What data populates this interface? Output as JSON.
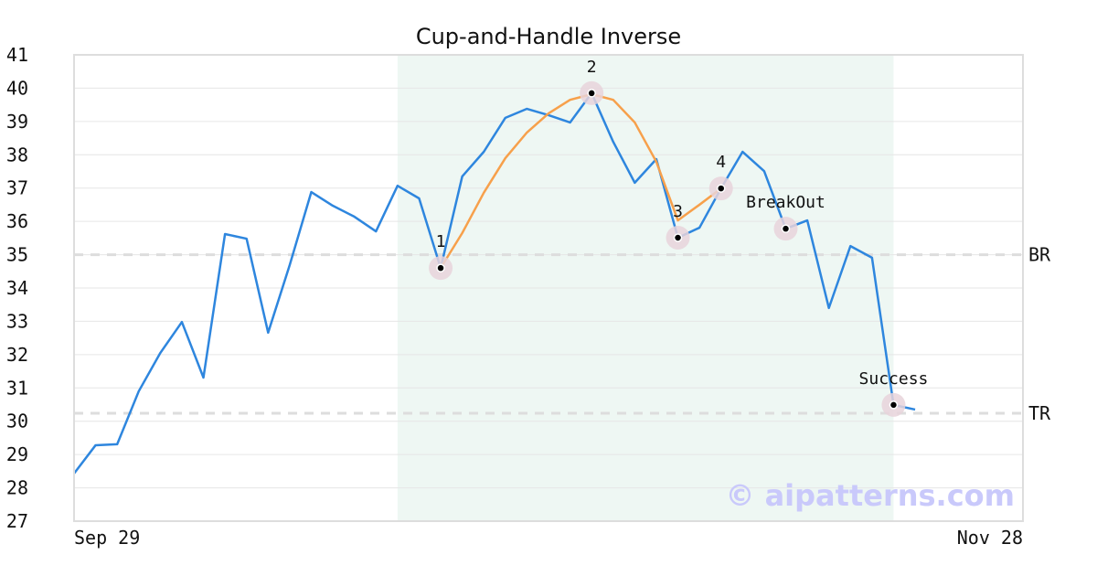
{
  "chart_data": {
    "type": "line",
    "title": "Cup-and-Handle Inverse",
    "categories": [
      "Sep 29",
      null,
      null,
      null,
      null,
      null,
      null,
      null,
      null,
      null,
      null,
      null,
      null,
      null,
      null,
      null,
      null,
      null,
      null,
      null,
      null,
      null,
      null,
      null,
      null,
      null,
      null,
      null,
      null,
      null,
      null,
      null,
      null,
      null,
      null,
      null,
      null,
      null,
      null,
      null,
      null,
      null,
      null,
      null,
      "Nov 28"
    ],
    "series": [
      {
        "color": "#2e86de",
        "values": [
          28.43,
          29.28,
          29.31,
          30.9,
          32.05,
          32.98,
          31.31,
          35.62,
          35.48,
          32.66,
          34.69,
          36.88,
          36.47,
          36.14,
          35.7,
          37.07,
          36.69,
          34.6,
          37.35,
          38.09,
          39.11,
          39.38,
          39.19,
          38.97,
          39.85,
          38.39,
          37.16,
          37.87,
          35.51,
          35.81,
          36.99,
          38.09,
          37.51,
          35.78,
          36.03,
          33.4,
          35.26,
          34.91,
          30.49,
          30.35,
          null,
          null,
          null,
          null,
          null
        ]
      },
      {
        "color": "#f7a04b",
        "values": [
          null,
          null,
          null,
          null,
          null,
          null,
          null,
          null,
          null,
          null,
          null,
          null,
          null,
          null,
          null,
          null,
          null,
          34.6,
          35.65,
          36.86,
          37.9,
          38.67,
          39.24,
          39.65,
          39.82,
          39.65,
          38.97,
          37.79,
          36.03,
          36.5,
          36.99,
          null,
          null,
          null,
          null,
          null,
          null,
          null,
          null,
          null,
          null,
          null,
          null,
          null,
          null
        ]
      }
    ],
    "points": [
      {
        "label": "1",
        "index": 17
      },
      {
        "label": "2",
        "index": 24
      },
      {
        "label": "3",
        "index": 28
      },
      {
        "label": "4",
        "index": 30
      },
      {
        "label": "BreakOut",
        "index": 33
      },
      {
        "label": "Success",
        "index": 38
      }
    ],
    "highlight_range": [
      15,
      38
    ],
    "hlines": [
      {
        "label": "BR",
        "value": 35
      },
      {
        "label": "TR",
        "value": 30.24
      }
    ],
    "ylim": [
      27,
      41
    ],
    "yticks": [
      27,
      28,
      29,
      30,
      31,
      32,
      33,
      34,
      35,
      36,
      37,
      38,
      39,
      40,
      41
    ],
    "grid": true,
    "watermark": "© aipatterns.com"
  }
}
